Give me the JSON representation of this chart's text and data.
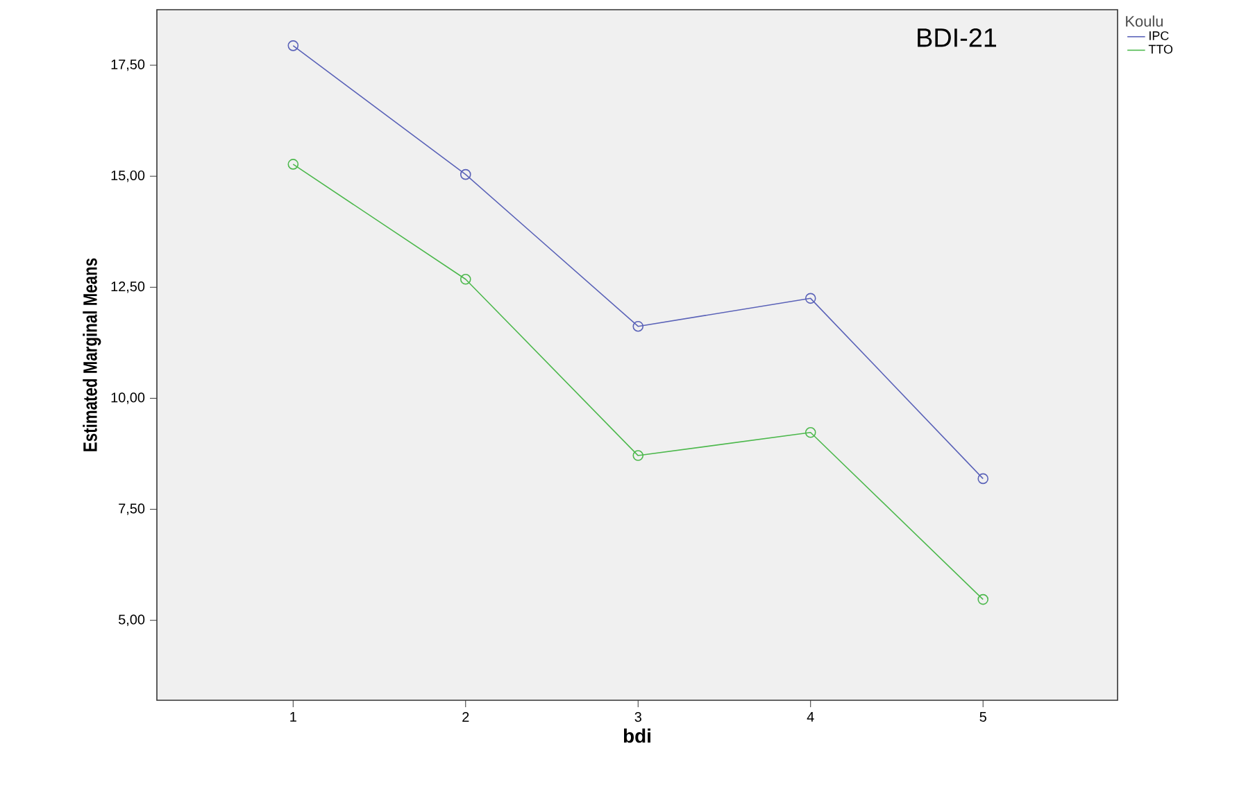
{
  "chart_data": {
    "type": "line",
    "xlabel": "bdi",
    "ylabel": "Estimated Marginal Means",
    "legend_title": "Koulu",
    "annotations": [
      "BDI-21"
    ],
    "categories": [
      "1",
      "2",
      "3",
      "4",
      "5"
    ],
    "series": [
      {
        "name": "IPC",
        "color": "#5a62b8",
        "values": [
          17.94,
          15.04,
          11.62,
          12.25,
          8.19
        ]
      },
      {
        "name": "TTO",
        "color": "#4cb84c",
        "values": [
          15.27,
          12.68,
          8.71,
          9.23,
          5.47
        ]
      }
    ],
    "ylim": [
      3.2,
      18.75
    ],
    "yticks": [
      {
        "value": 5,
        "label": "5,00"
      },
      {
        "value": 7.5,
        "label": "7,50"
      },
      {
        "value": 10,
        "label": "10,00"
      },
      {
        "value": 12.5,
        "label": "12,50"
      },
      {
        "value": 15,
        "label": "15,00"
      },
      {
        "value": 17.5,
        "label": "17,50"
      }
    ],
    "legend": "top right",
    "marker": "circle",
    "line_style": "solid",
    "grid": false
  }
}
